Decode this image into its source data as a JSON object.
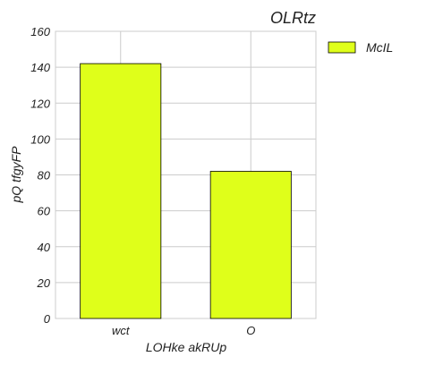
{
  "chart_data": {
    "type": "bar",
    "title": "OLRtz",
    "xlabel": "LOHke akRUp",
    "ylabel": "pQ tfgyFP",
    "categories": [
      "wct",
      "O"
    ],
    "series": [
      {
        "name": "McIL",
        "values": [
          142,
          82
        ],
        "color": "#dfff1a"
      }
    ],
    "ylim": [
      0,
      160
    ],
    "yticks": [
      0,
      20,
      40,
      60,
      80,
      100,
      120,
      140,
      160
    ],
    "grid": true,
    "legend": "top-right"
  }
}
